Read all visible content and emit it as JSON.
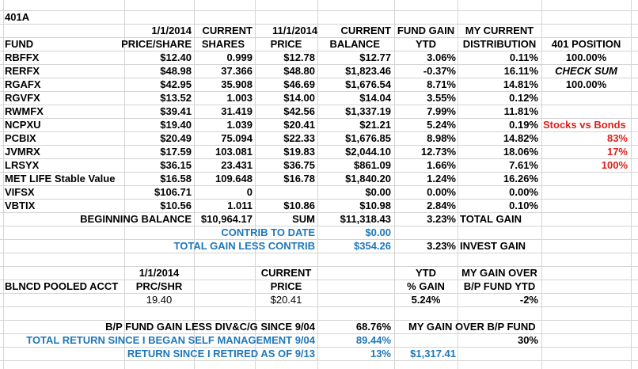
{
  "sheet": {
    "title": "401A",
    "header": {
      "date1": "1/1/2014",
      "date2": "11/1/2014",
      "fund": "FUND",
      "price_share": "PRICE/SHARE",
      "current1": "CURRENT",
      "shares": "SHARES",
      "current2": "CURRENT",
      "price": "PRICE",
      "current3": "CURRENT",
      "balance": "BALANCE",
      "fund_gain": "FUND GAIN",
      "ytd": "YTD",
      "my_current": "MY CURRENT",
      "distribution": "DISTRIBUTION",
      "position_401": "401 POSITION"
    },
    "funds": [
      {
        "fund": "RBFFX",
        "price_share": "$12.40",
        "shares": "0.999",
        "price": "$12.78",
        "balance": "$12.77",
        "ytd": "3.06%",
        "dist": "0.11%"
      },
      {
        "fund": "RERFX",
        "price_share": "$48.98",
        "shares": "37.366",
        "price": "$48.80",
        "balance": "$1,823.46",
        "ytd": "-0.37%",
        "dist": "16.11%"
      },
      {
        "fund": "RGAFX",
        "price_share": "$42.95",
        "shares": "35.908",
        "price": "$46.69",
        "balance": "$1,676.54",
        "ytd": "8.71%",
        "dist": "14.81%"
      },
      {
        "fund": "RGVFX",
        "price_share": "$13.52",
        "shares": "1.003",
        "price": "$14.00",
        "balance": "$14.04",
        "ytd": "3.55%",
        "dist": "0.12%"
      },
      {
        "fund": "RWMFX",
        "price_share": "$39.41",
        "shares": "31.419",
        "price": "$42.56",
        "balance": "$1,337.19",
        "ytd": "7.99%",
        "dist": "11.81%"
      },
      {
        "fund": "NCPXU",
        "price_share": "$19.40",
        "shares": "1.039",
        "price": "$20.41",
        "balance": "$21.21",
        "ytd": "5.24%",
        "dist": "0.19%"
      },
      {
        "fund": "PCBIX",
        "price_share": "$20.49",
        "shares": "75.094",
        "price": "$22.33",
        "balance": "$1,676.85",
        "ytd": "8.98%",
        "dist": "14.82%"
      },
      {
        "fund": "JVMRX",
        "price_share": "$17.59",
        "shares": "103.081",
        "price": "$19.83",
        "balance": "$2,044.10",
        "ytd": "12.73%",
        "dist": "18.06%"
      },
      {
        "fund": "LRSYX",
        "price_share": "$36.15",
        "shares": "23.431",
        "price": "$36.75",
        "balance": "$861.09",
        "ytd": "1.66%",
        "dist": "7.61%"
      },
      {
        "fund": "MET LIFE Stable Value",
        "price_share": "$16.58",
        "shares": "109.648",
        "price": "$16.78",
        "balance": "$1,840.20",
        "ytd": "1.24%",
        "dist": "16.26%"
      },
      {
        "fund": "VIFSX",
        "price_share": "$106.71",
        "shares": "0",
        "price": "",
        "balance": "$0.00",
        "ytd": "0.00%",
        "dist": "0.00%"
      },
      {
        "fund": "VBTIX",
        "price_share": "$10.56",
        "shares": "1.011",
        "price": "$10.86",
        "balance": "$10.98",
        "ytd": "2.84%",
        "dist": "0.10%"
      }
    ],
    "side": {
      "pos1": "100.00%",
      "check_sum": "CHECK SUM",
      "pos2": "100.00%",
      "stocks_vs_bonds": "Stocks vs Bonds",
      "v1": "83%",
      "v2": "17%",
      "v3": "100%"
    },
    "totals": {
      "beginning_label": "BEGINNING BALANCE",
      "beginning_value": "$10,964.17",
      "sum_label": "SUM",
      "sum_value": "$11,318.43",
      "total_gain_pct": "3.23%",
      "total_gain_label": "TOTAL GAIN",
      "contrib_label": "CONTRIB TO DATE",
      "contrib_value": "$0.00",
      "less_contrib_label": "TOTAL GAIN LESS CONTRIB",
      "less_contrib_value": "$354.26",
      "invest_gain_pct": "3.23%",
      "invest_gain_label": "INVEST GAIN"
    },
    "pooled": {
      "date": "1/1/2014",
      "current": "CURRENT",
      "ytd": "YTD",
      "my_gain_over": "MY GAIN OVER",
      "name": "BLNCD POOLED ACCT",
      "prc_shr": "PRC/SHR",
      "price": "PRICE",
      "pct_gain": "% GAIN",
      "bp_fund_ytd": "B/P FUND YTD",
      "prc_value": "19.40",
      "price_value": "$20.41",
      "gain_value": "5.24%",
      "over_value": "-2%"
    },
    "summary": {
      "bp_label": "B/P FUND GAIN LESS DIV&C/G SINCE 9/04",
      "bp_value": "68.76%",
      "over_label": "MY GAIN OVER  B/P FUND",
      "self_label": "TOTAL RETURN SINCE I BEGAN SELF MANAGEMENT 9/04",
      "self_value": "89.44%",
      "self_over": "30%",
      "retired_label": "RETURN SINCE I RETIRED AS OF 9/13",
      "retired_pct": "13%",
      "retired_value": "$1,317.41"
    }
  }
}
